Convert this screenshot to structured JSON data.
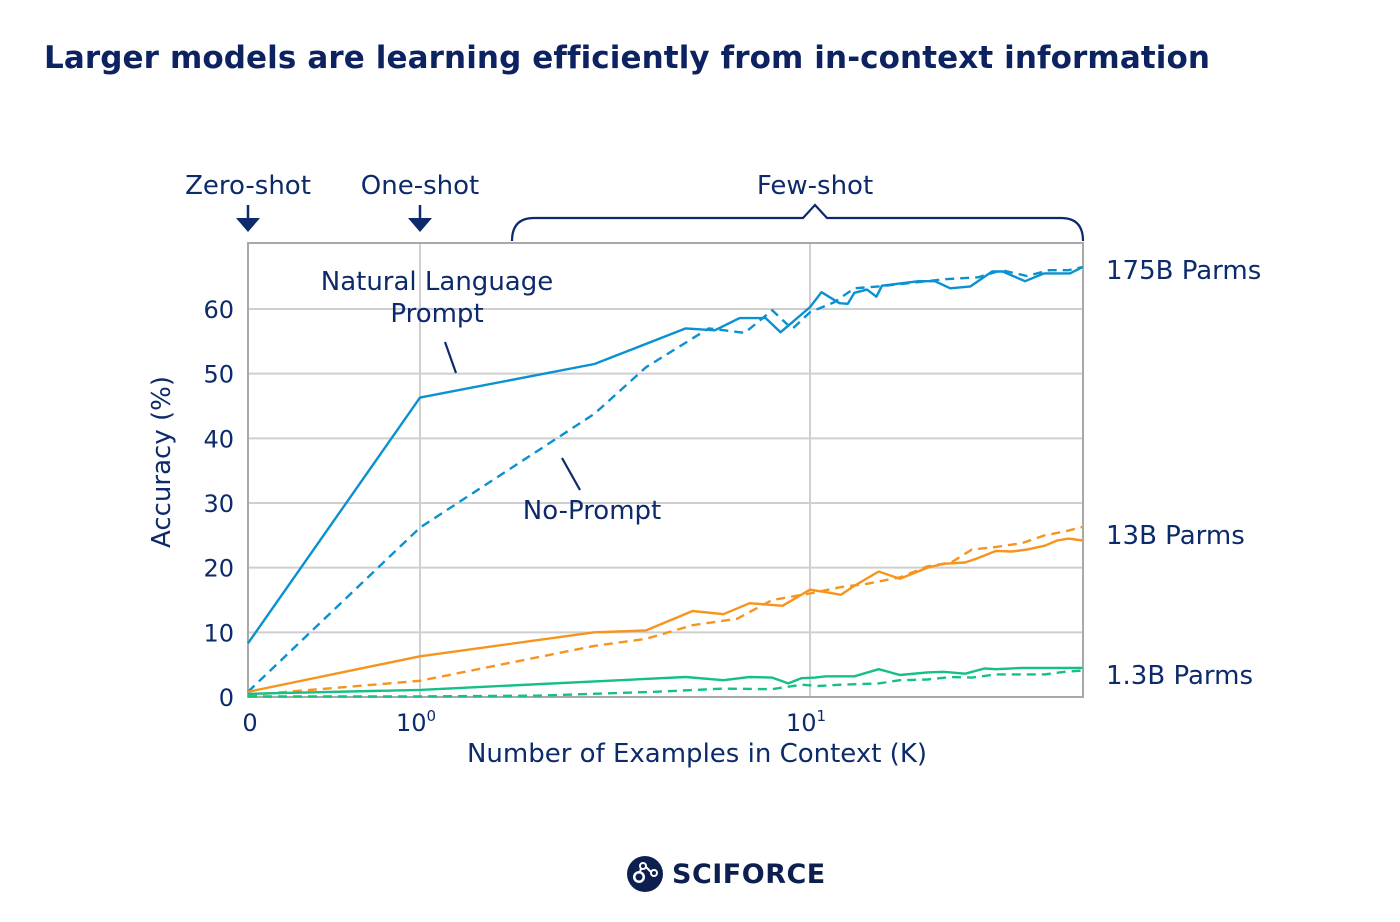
{
  "page": {
    "title": "Larger models are learning efficiently from in-context information",
    "brand": "SCIFORCE",
    "brand_icon": "molecule-circle-icon"
  },
  "chart_data": {
    "type": "line",
    "title": "Larger models are learning efficiently from in-context information",
    "xlabel": "Number of Examples in Context (K)",
    "ylabel": "Accuracy (%)",
    "xscale": "symlog",
    "xlim": [
      0,
      50
    ],
    "ylim": [
      0,
      70
    ],
    "grid": true,
    "x_ticks": [
      {
        "value": 0,
        "label": "0"
      },
      {
        "value": 1,
        "label": "10",
        "sup": "0"
      },
      {
        "value": 10,
        "label": "10",
        "sup": "1"
      }
    ],
    "y_ticks": [
      0,
      10,
      20,
      30,
      40,
      50,
      60
    ],
    "regions": [
      {
        "label": "Zero-shot",
        "marker": "arrow",
        "at": 0
      },
      {
        "label": "One-shot",
        "marker": "arrow",
        "at": 1
      },
      {
        "label": "Few-shot",
        "marker": "bracket",
        "from": 1.7,
        "to": 50
      }
    ],
    "annotations": [
      {
        "text": [
          "Natural Language",
          "Prompt"
        ],
        "points_to": "solid lines"
      },
      {
        "text": [
          "No-Prompt"
        ],
        "points_to": "dashed lines"
      }
    ],
    "colors": {
      "175B": "#0a91d1",
      "13B": "#f7941d",
      "1.3B": "#16c083",
      "text": "#0d2a6b",
      "grid": "#cfcfcf",
      "frame": "#a9a9a9"
    },
    "series": [
      {
        "name": "175B Parms - Natural Language Prompt",
        "model": "175B",
        "style": "solid",
        "x": [
          0,
          1,
          2.8,
          4.8,
          5.7,
          6.6,
          7.7,
          8.4,
          10,
          10.7,
          11.9,
          12.5,
          13,
          14,
          14.8,
          15.3,
          19,
          20.9,
          22.9,
          25.8,
          29.3,
          31.2,
          35.6,
          39.8,
          46.4,
          50
        ],
        "y": [
          8.3,
          46.3,
          51.5,
          57,
          56.7,
          58.6,
          58.6,
          56.4,
          60.3,
          62.6,
          60.9,
          60.8,
          62.5,
          63,
          61.9,
          63.6,
          64.3,
          64.3,
          63.2,
          63.5,
          65.8,
          65.8,
          64.3,
          65.5,
          65.5,
          66.5
        ]
      },
      {
        "name": "175B Parms - No-Prompt",
        "model": "175B",
        "style": "dashed",
        "x": [
          0,
          1,
          2.8,
          3.8,
          5.5,
          6.8,
          8,
          9,
          10,
          11.5,
          13,
          15,
          18,
          22,
          27,
          31,
          36,
          41,
          46,
          50
        ],
        "y": [
          0.8,
          26.2,
          43.8,
          51,
          57,
          56.3,
          59.8,
          56.9,
          59.5,
          61,
          63.2,
          63.5,
          64,
          64.6,
          64.9,
          66,
          65.1,
          66,
          66,
          66.5
        ]
      },
      {
        "name": "13B Parms - Natural Language Prompt",
        "model": "13B",
        "style": "solid",
        "x": [
          0,
          1,
          2.8,
          3.8,
          5,
          6,
          7,
          8.5,
          10,
          11,
          12,
          13,
          15,
          17,
          20,
          22,
          25,
          27,
          30,
          33,
          36,
          40,
          43,
          46,
          50
        ],
        "y": [
          0.8,
          6.3,
          10,
          10.3,
          13.3,
          12.8,
          14.5,
          14.1,
          16.6,
          16.2,
          15.8,
          17.2,
          19.4,
          18.3,
          20,
          20.6,
          20.8,
          21.5,
          22.6,
          22.5,
          22.8,
          23.4,
          24.2,
          24.5,
          24.2
        ]
      },
      {
        "name": "13B Parms - No-Prompt",
        "model": "13B",
        "style": "dashed",
        "x": [
          0,
          1,
          2.8,
          3.8,
          5,
          6.5,
          8,
          10,
          12,
          14,
          17,
          20,
          23,
          26,
          30,
          35,
          40,
          45,
          50
        ],
        "y": [
          0.3,
          2.5,
          7.9,
          9,
          11.1,
          12.1,
          15,
          16,
          17,
          17.5,
          18.5,
          20.2,
          20.8,
          22.8,
          23.2,
          23.8,
          25,
          25.6,
          26.3
        ]
      },
      {
        "name": "1.3B Parms - Natural Language Prompt",
        "model": "1.3B",
        "style": "solid",
        "x": [
          0,
          1,
          4.8,
          6,
          7,
          8,
          8.8,
          9.5,
          10.3,
          11,
          13,
          15,
          17,
          20,
          22,
          25,
          28,
          30,
          35,
          40,
          50
        ],
        "y": [
          0.5,
          1.1,
          3.1,
          2.6,
          3.1,
          3,
          2.1,
          2.9,
          3,
          3.2,
          3.2,
          4.3,
          3.4,
          3.8,
          3.9,
          3.6,
          4.4,
          4.3,
          4.5,
          4.5,
          4.5
        ]
      },
      {
        "name": "1.3B Parms - No-Prompt",
        "model": "1.3B",
        "style": "dashed",
        "x": [
          0,
          1,
          2,
          4,
          6,
          8,
          9.5,
          10.5,
          12,
          15,
          17,
          20,
          23,
          26,
          30,
          35,
          40,
          45,
          50
        ],
        "y": [
          0.1,
          0.1,
          0.2,
          0.8,
          1.3,
          1.2,
          1.9,
          1.7,
          1.9,
          2.1,
          2.6,
          2.7,
          3.1,
          3,
          3.5,
          3.5,
          3.5,
          3.9,
          4.1
        ]
      }
    ],
    "series_labels": [
      {
        "text": "175B Parms",
        "model": "175B",
        "y": 66.5
      },
      {
        "text": "13B Parms",
        "model": "13B",
        "y": 25.5
      },
      {
        "text": "1.3B Parms",
        "model": "1.3B",
        "y": 3.5
      }
    ]
  }
}
